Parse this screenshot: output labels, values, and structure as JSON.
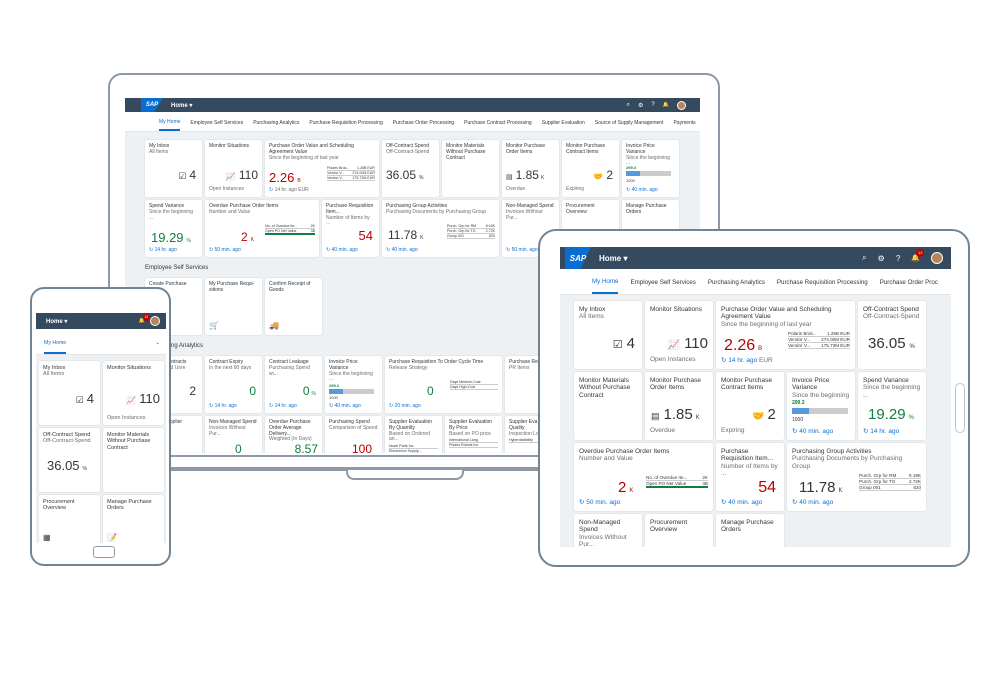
{
  "shell": {
    "logo": "SAP",
    "home": "Home ▾"
  },
  "colors": {
    "shell": "#354a5f",
    "accent": "#0a6ed1",
    "negative": "#bb0000",
    "positive": "#107e3e"
  },
  "icons": {
    "search": "⌕",
    "settings": "⚙",
    "help": "?",
    "bell": "🔔"
  },
  "laptop": {
    "tabs": [
      "My Home",
      "Employee Self Services",
      "Purchasing Analytics",
      "Purchase Requisition Processing",
      "Purchase Order Processing",
      "Purchase Contract Processing",
      "Supplier Evaluation",
      "Source of Supply Management",
      "Payments"
    ],
    "sections": {
      "ess": "Employee Self Services",
      "analytics": "ng Analytics"
    },
    "ess_tiles": [
      {
        "title": "Create Purchase",
        "sub": "ation"
      },
      {
        "title": "My Purchase Requi-sitions"
      },
      {
        "title": "Confirm Receipt of Goods"
      }
    ],
    "analytics_tiles": [
      {
        "title": "Contracts",
        "sub": "and Unre",
        "value": "2"
      },
      {
        "title": "Contract Expiry",
        "sub": "In the next 90 days",
        "value": "0",
        "foot": "14 hr. ago"
      },
      {
        "title": "Contract Leakage",
        "sub": "Purchasing Spend wi...",
        "value": "0",
        "unit": "%",
        "foot": "14 hr. ago"
      },
      {
        "title": "Invoice Price Variance",
        "sub": "Since the beginning ...",
        "foot": "40 min. ago"
      },
      {
        "title": "Purchase Requisition To Order Cycle Time",
        "sub": "Release Strategy",
        "value": "0",
        "foot": "20 min. ago",
        "rows": [
          "Days Medium-Cost",
          "Days High-Cost"
        ]
      },
      {
        "title": "Purchase Re",
        "sub": "PR Items"
      }
    ],
    "bottom_tiles": [
      {
        "title": "upplier"
      },
      {
        "title": "Non-Managed Spend",
        "sub": "Invoices Without Pur...",
        "value": "0"
      },
      {
        "title": "Overdue Purchase Order Average Delivery...",
        "sub": "Weighted (In Days)",
        "value": "8.57"
      },
      {
        "title": "Purchasing Spend",
        "sub": "Comparison of Spend",
        "value": "100"
      },
      {
        "title": "Supplier Evaluation By Quantity",
        "sub": "Based on Ordered an...",
        "rows": [
          "Novel Parts Inc.",
          "Electronics Supply..."
        ]
      },
      {
        "title": "Supplier Evaluation By Price",
        "sub": "Based on PO price",
        "rows": [
          "International Lang.",
          "Polaris Robots Inc."
        ]
      },
      {
        "title": "Supplier Eva by Quality",
        "sub": "Inspection Lot",
        "rows": [
          "Hyperdatability"
        ]
      }
    ]
  },
  "tiles": {
    "inbox": {
      "title": "My Inbox",
      "sub": "All Items",
      "value": "4"
    },
    "monitor_situations": {
      "title": "Monitor Situations",
      "value": "110",
      "foot": "Open Instances"
    },
    "po_value": {
      "title": "Purchase Order Value and Scheduling Agreement Value",
      "sub": "Since the beginning of last year",
      "value": "2.26",
      "scale": "B",
      "foot": "14 hr. ago",
      "currency": "EUR",
      "rows": [
        {
          "label": "Polaris Brok...",
          "value": "1.28B EUR"
        },
        {
          "label": "Vendor V...",
          "value": "274.00M EUR"
        },
        {
          "label": "Vendor V...",
          "value": "175.73M EUR"
        }
      ]
    },
    "off_contract": {
      "title": "Off-Contract Spend",
      "sub": "Off-Contract-Spend",
      "value": "36.05",
      "unit": "%"
    },
    "materials_no_po": {
      "title": "Monitor Materials Without Purchase Contract"
    },
    "monitor_po_items": {
      "title": "Monitor Purchase Order Items",
      "value": "1.85",
      "scale": "K",
      "foot": "Overdue"
    },
    "monitor_contract_items": {
      "title": "Monitor Purchase Contract Items",
      "value": "2",
      "foot": "Expiring"
    },
    "ipv": {
      "title": "Invoice Price Variance",
      "sub": "Since the beginning ...",
      "top": "299.3",
      "bottom": "1000",
      "progress": 0.3,
      "foot": "40 min. ago"
    },
    "spend_variance": {
      "title": "Spend Variance",
      "sub": "Since the beginning ...",
      "value": "19.29",
      "unit": "%",
      "foot": "14 hr. ago"
    },
    "overdue_po": {
      "title": "Overdue Purchase Order Items",
      "sub": "Number and Value",
      "value": "2",
      "scale": "K",
      "foot": "50 min. ago",
      "rows": [
        {
          "label": "No. of Overdue Ite...",
          "value": "2K"
        },
        {
          "label": "Open PO Net Value",
          "value": "3B"
        }
      ]
    },
    "pr_items": {
      "title": "Purchase Requisition Item...",
      "sub": "Number of Items by ...",
      "value": "54",
      "foot": "40 min. ago"
    },
    "pg_activities": {
      "title": "Purchasing Group Activities",
      "sub": "Purchasing Documents by Purchasing Group",
      "value": "11.78",
      "scale": "K",
      "foot": "40 min. ago",
      "rows": [
        {
          "label": "Purch. Grp for RM",
          "value": "8.18K"
        },
        {
          "label": "Purch. Grp for TG",
          "value": "2.72K"
        },
        {
          "label": "Group 001",
          "value": "820"
        }
      ]
    },
    "non_managed": {
      "title": "Non-Managed Spend",
      "sub": "Invoices Without Pur...",
      "foot": "50 min. ago"
    },
    "procurement": {
      "title": "Procurement Overview"
    },
    "manage_po": {
      "title": "Manage Purchase Orders"
    }
  },
  "tablet": {
    "tabs": [
      "My Home",
      "Employee Self Services",
      "Purchasing Analytics",
      "Purchase Requisition Processing",
      "Purchase Order Proc"
    ],
    "badge": "12"
  },
  "phone": {
    "tab": "My Home",
    "badge": "12"
  }
}
